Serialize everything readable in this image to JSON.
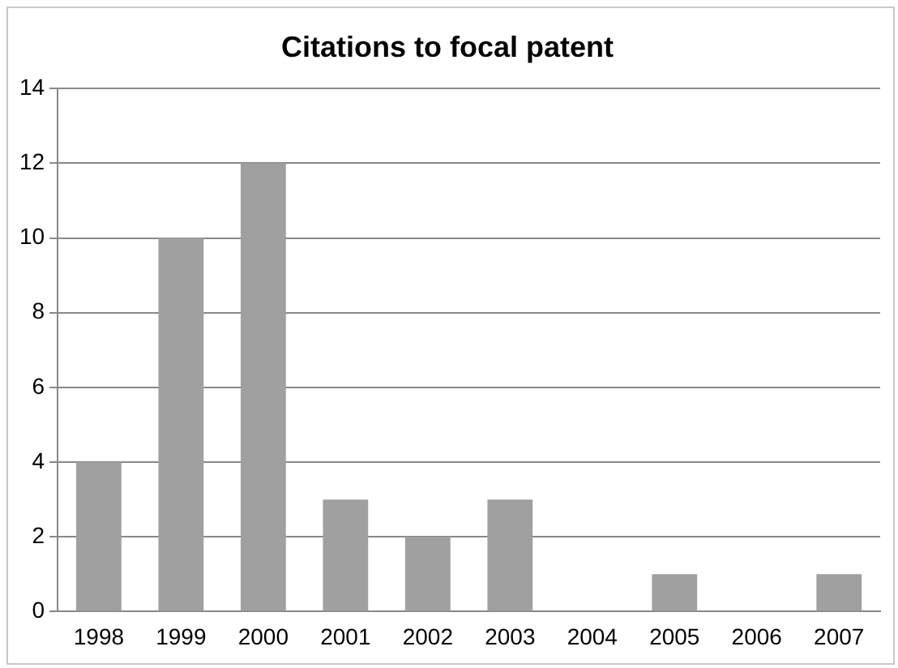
{
  "chart_data": {
    "type": "bar",
    "title": "Citations to focal patent",
    "categories": [
      "1998",
      "1999",
      "2000",
      "2001",
      "2002",
      "2003",
      "2004",
      "2005",
      "2006",
      "2007"
    ],
    "values": [
      4,
      10,
      12,
      3,
      2,
      3,
      0,
      1,
      0,
      1
    ],
    "color": "#a0a0a0",
    "ylim": [
      0,
      14
    ],
    "yticks": [
      0,
      2,
      4,
      6,
      8,
      10,
      12,
      14
    ],
    "grid": "y",
    "legend": false
  }
}
